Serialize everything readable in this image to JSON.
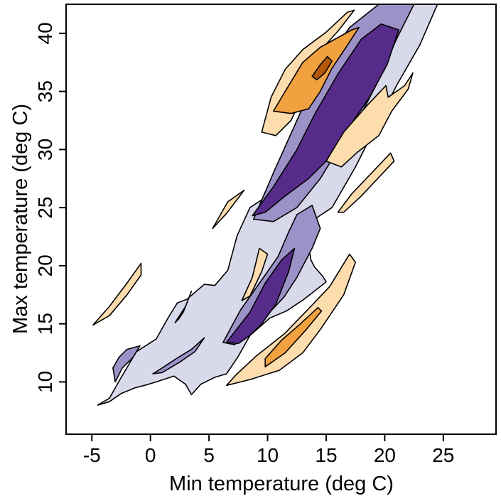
{
  "chart_data": {
    "type": "contour",
    "xlabel": "Min temperature (deg C)",
    "ylabel": "Max temperature (deg C)",
    "xlim": [
      -7.2,
      29.5
    ],
    "ylim": [
      5.5,
      42.5
    ],
    "xticks": [
      -5,
      0,
      5,
      10,
      15,
      20,
      25
    ],
    "yticks": [
      10,
      15,
      20,
      25,
      30,
      35,
      40
    ],
    "xtick_labels": [
      "-5",
      "0",
      "5",
      "10",
      "15",
      "20",
      "25"
    ],
    "ytick_labels": [
      "10",
      "15",
      "20",
      "25",
      "30",
      "35",
      "40"
    ],
    "grid": false,
    "legend": "none",
    "colors": {
      "purple_light": "#d9d9ec",
      "purple_mid": "#9d92c8",
      "purple_dark": "#562b8a",
      "orange_light": "#fddcae",
      "orange_mid": "#f1a13f",
      "orange_dark": "#b35806"
    },
    "regions": [
      {
        "level": "purple_light",
        "points": [
          [
            -4.5,
            8
          ],
          [
            -3.5,
            8.6
          ],
          [
            -2.6,
            10.2
          ],
          [
            -1.2,
            12.6
          ],
          [
            0.5,
            13.7
          ],
          [
            1.5,
            15.5
          ],
          [
            2.3,
            16.8
          ],
          [
            3.1,
            17.1
          ],
          [
            4.6,
            18.4
          ],
          [
            5.5,
            18.3
          ],
          [
            6.6,
            19.6
          ],
          [
            7.4,
            22.6
          ],
          [
            8.5,
            25
          ],
          [
            10,
            26
          ],
          [
            11.5,
            29
          ],
          [
            13,
            33
          ],
          [
            15,
            37
          ],
          [
            17.5,
            40.5
          ],
          [
            20,
            42.5
          ],
          [
            24.5,
            42.5
          ],
          [
            23,
            39
          ],
          [
            21,
            35.5
          ],
          [
            19,
            31.5
          ],
          [
            17.5,
            28.5
          ],
          [
            15.5,
            25
          ],
          [
            14,
            24
          ],
          [
            13.5,
            21.8
          ],
          [
            13.7,
            20.5
          ],
          [
            14,
            19.9
          ],
          [
            14.7,
            19.1
          ],
          [
            15,
            18.6
          ],
          [
            13.1,
            17.1
          ],
          [
            11.6,
            16.1
          ],
          [
            10.2,
            15.5
          ],
          [
            8.5,
            14
          ],
          [
            7.5,
            12.2
          ],
          [
            6.5,
            10.7
          ],
          [
            5.5,
            10.4
          ],
          [
            4.3,
            9.8
          ],
          [
            3.5,
            8.9
          ],
          [
            3,
            9.8
          ],
          [
            2,
            10.5
          ],
          [
            0.5,
            10
          ],
          [
            -0.5,
            9.7
          ],
          [
            -1.3,
            9.5
          ],
          [
            -2.5,
            9
          ],
          [
            -3.5,
            8.3
          ]
        ]
      },
      {
        "level": "purple_mid",
        "points": [
          [
            -3,
            10
          ],
          [
            -2.4,
            11.2
          ],
          [
            -1.5,
            12.1
          ],
          [
            -0.9,
            13.1
          ],
          [
            -2,
            12.8
          ],
          [
            -2.7,
            12.1
          ],
          [
            -3.2,
            11.2
          ]
        ]
      },
      {
        "level": "purple_mid",
        "points": [
          [
            0.2,
            10.7
          ],
          [
            1,
            11.2
          ],
          [
            2.2,
            12
          ],
          [
            3.5,
            12.8
          ],
          [
            4.6,
            13.8
          ],
          [
            3.8,
            12.6
          ],
          [
            2.5,
            11.7
          ],
          [
            1,
            10.8
          ]
        ]
      },
      {
        "level": "purple_mid",
        "points": [
          [
            6.2,
            13.4
          ],
          [
            7.7,
            16.2
          ],
          [
            9.8,
            19.2
          ],
          [
            10.9,
            20.8
          ],
          [
            11.8,
            22.9
          ],
          [
            12.5,
            24.4
          ],
          [
            13.8,
            25.2
          ],
          [
            14.5,
            23.2
          ],
          [
            13.8,
            21.5
          ],
          [
            12.5,
            19
          ],
          [
            11.4,
            17.3
          ],
          [
            10,
            15.8
          ],
          [
            8.5,
            14.5
          ],
          [
            7.2,
            13.2
          ]
        ]
      },
      {
        "level": "purple_mid",
        "points": [
          [
            8.8,
            24
          ],
          [
            10.5,
            28
          ],
          [
            12.5,
            32.5
          ],
          [
            14.5,
            37
          ],
          [
            17,
            40.5
          ],
          [
            19.5,
            42.5
          ],
          [
            22.5,
            42.5
          ],
          [
            21,
            39.5
          ],
          [
            19.5,
            36
          ],
          [
            17.7,
            32.5
          ],
          [
            16,
            30
          ],
          [
            14.5,
            27.5
          ],
          [
            12.5,
            25
          ],
          [
            10.5,
            23.8
          ]
        ]
      },
      {
        "level": "purple_dark",
        "points": [
          [
            6.5,
            13.4
          ],
          [
            8.5,
            16
          ],
          [
            9.8,
            18.5
          ],
          [
            11.2,
            20.5
          ],
          [
            12.3,
            21.5
          ],
          [
            11.8,
            19.5
          ],
          [
            10.7,
            16.7
          ],
          [
            9.5,
            15
          ],
          [
            8.5,
            14
          ],
          [
            7.5,
            13.3
          ]
        ]
      },
      {
        "level": "purple_dark",
        "points": [
          [
            8.7,
            24.3
          ],
          [
            10.5,
            26.8
          ],
          [
            12.5,
            30
          ],
          [
            14,
            33
          ],
          [
            16,
            36.5
          ],
          [
            18,
            39.5
          ],
          [
            19.7,
            40.8
          ],
          [
            21.2,
            40.3
          ],
          [
            20.2,
            37.3
          ],
          [
            18.7,
            34.5
          ],
          [
            17,
            32
          ],
          [
            15,
            29
          ],
          [
            13.5,
            27.5
          ],
          [
            11.5,
            26
          ],
          [
            9.8,
            24.6
          ]
        ]
      },
      {
        "level": "orange_light",
        "points": [
          [
            -4.9,
            14.9
          ],
          [
            -3.5,
            16.5
          ],
          [
            -2,
            18.5
          ],
          [
            -0.8,
            20.2
          ],
          [
            -0.8,
            19.2
          ],
          [
            -2,
            17.5
          ],
          [
            -3.5,
            15.7
          ]
        ]
      },
      {
        "level": "orange_light",
        "points": [
          [
            2.1,
            15.1
          ],
          [
            3,
            16.5
          ],
          [
            3.5,
            17.8
          ],
          [
            2.8,
            16
          ],
          [
            2.4,
            15.4
          ]
        ]
      },
      {
        "level": "orange_light",
        "points": [
          [
            5.3,
            23.2
          ],
          [
            6.5,
            24.5
          ],
          [
            8,
            26.5
          ],
          [
            6.6,
            25.5
          ]
        ]
      },
      {
        "level": "orange_light",
        "points": [
          [
            7.8,
            17
          ],
          [
            8.7,
            19
          ],
          [
            9.3,
            21.5
          ],
          [
            10,
            21
          ],
          [
            9.5,
            19.5
          ],
          [
            8.5,
            17.4
          ]
        ]
      },
      {
        "level": "orange_light",
        "points": [
          [
            6.5,
            9.7
          ],
          [
            8.5,
            10.2
          ],
          [
            11,
            11
          ],
          [
            13,
            12.5
          ],
          [
            14.5,
            14.5
          ],
          [
            16.5,
            17.5
          ],
          [
            17.5,
            20.3
          ],
          [
            17,
            21
          ],
          [
            15.3,
            18.2
          ],
          [
            13.7,
            16.5
          ],
          [
            11.5,
            14.2
          ],
          [
            9,
            12.2
          ],
          [
            7.3,
            10.6
          ]
        ]
      },
      {
        "level": "orange_light",
        "points": [
          [
            9.5,
            31.5
          ],
          [
            10.3,
            34.5
          ],
          [
            11.5,
            36.9
          ],
          [
            13,
            38.6
          ],
          [
            15,
            40.1
          ],
          [
            16.8,
            41.8
          ],
          [
            17.4,
            42
          ],
          [
            16.1,
            40.3
          ],
          [
            14.5,
            38.5
          ],
          [
            13.2,
            35
          ],
          [
            12,
            32.5
          ],
          [
            10.7,
            31.2
          ]
        ]
      },
      {
        "level": "orange_light",
        "points": [
          [
            15,
            29
          ],
          [
            16.5,
            31.5
          ],
          [
            18.5,
            33.8
          ],
          [
            20.1,
            35.5
          ],
          [
            20.3,
            34.5
          ],
          [
            21.7,
            35.5
          ],
          [
            22.4,
            36.6
          ],
          [
            22,
            35.2
          ],
          [
            20.6,
            33.3
          ],
          [
            19.5,
            31.2
          ],
          [
            17.7,
            29.8
          ],
          [
            16.3,
            28.5
          ]
        ]
      },
      {
        "level": "orange_light",
        "points": [
          [
            16,
            24.6
          ],
          [
            17.2,
            26.2
          ],
          [
            18.9,
            28
          ],
          [
            20.5,
            29.7
          ],
          [
            20.8,
            29
          ],
          [
            19.5,
            27.6
          ],
          [
            18,
            26
          ],
          [
            16.5,
            24.6
          ]
        ]
      },
      {
        "level": "orange_mid",
        "points": [
          [
            9.8,
            11.3
          ],
          [
            11.5,
            12.5
          ],
          [
            13.3,
            14.5
          ],
          [
            14.6,
            16.1
          ],
          [
            14.3,
            16.4
          ],
          [
            12.8,
            15
          ],
          [
            11.2,
            13.6
          ],
          [
            9.8,
            12
          ]
        ]
      },
      {
        "level": "orange_mid",
        "points": [
          [
            10.5,
            33.3
          ],
          [
            11.5,
            35
          ],
          [
            13,
            37.5
          ],
          [
            14.5,
            38.8
          ],
          [
            17.2,
            40.3
          ],
          [
            17.8,
            40.5
          ],
          [
            16.5,
            38.5
          ],
          [
            15.5,
            37
          ],
          [
            14.5,
            35
          ],
          [
            13.5,
            33.5
          ],
          [
            12,
            33.1
          ]
        ]
      },
      {
        "level": "orange_dark",
        "points": [
          [
            13.8,
            36.3
          ],
          [
            14.5,
            37.3
          ],
          [
            15.1,
            38
          ],
          [
            15.5,
            37.6
          ],
          [
            14.9,
            36.6
          ],
          [
            14.2,
            36
          ]
        ]
      }
    ]
  }
}
